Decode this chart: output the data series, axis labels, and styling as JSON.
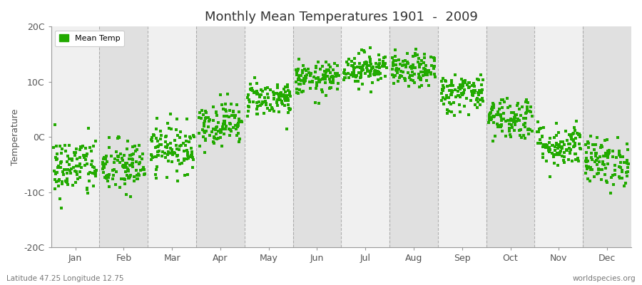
{
  "title": "Monthly Mean Temperatures 1901  -  2009",
  "ylabel": "Temperature",
  "ylim": [
    -20,
    20
  ],
  "yticks": [
    -20,
    -10,
    0,
    10,
    20
  ],
  "ytick_labels": [
    "-20C",
    "-10C",
    "0C",
    "10C",
    "20C"
  ],
  "month_labels": [
    "Jan",
    "Feb",
    "Mar",
    "Apr",
    "May",
    "Jun",
    "Jul",
    "Aug",
    "Sep",
    "Oct",
    "Nov",
    "Dec"
  ],
  "legend_label": "Mean Temp",
  "dot_color": "#22aa00",
  "background_color": "#ffffff",
  "plot_bg_color": "#f0f0f0",
  "plot_bg_alt": "#e0e0e0",
  "grid_color": "#888888",
  "footer_left": "Latitude 47.25 Longitude 12.75",
  "footer_right": "worldspecies.org",
  "monthly_means": [
    -5.5,
    -5.5,
    -2.0,
    2.5,
    7.0,
    10.5,
    12.5,
    12.0,
    8.0,
    3.5,
    -1.5,
    -4.5
  ],
  "monthly_stds": [
    2.8,
    2.5,
    2.2,
    2.0,
    1.6,
    1.5,
    1.5,
    1.5,
    1.8,
    2.0,
    2.0,
    2.2
  ],
  "n_years": 109,
  "seed": 42
}
